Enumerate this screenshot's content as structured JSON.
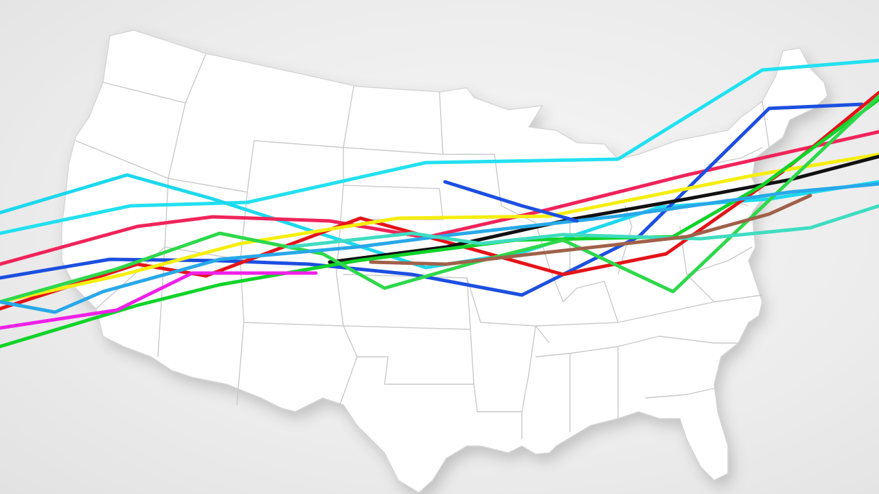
{
  "map": {
    "region": "contiguous-united-states",
    "land_color": "#ffffff",
    "border_color": "#c9c9c9",
    "background_color": "#e9e9e9"
  },
  "routes": [
    {
      "id": "route-cyan-north",
      "color": "#22e0f0"
    },
    {
      "id": "route-cyan-mid",
      "color": "#1ed8ee"
    },
    {
      "id": "route-pink-red",
      "color": "#f0245a"
    },
    {
      "id": "route-blue",
      "color": "#1c4fe0"
    },
    {
      "id": "route-red",
      "color": "#e4141a"
    },
    {
      "id": "route-yellow",
      "color": "#f5ee10"
    },
    {
      "id": "route-black",
      "color": "#111111"
    },
    {
      "id": "route-green-1",
      "color": "#12d32a"
    },
    {
      "id": "route-green-2",
      "color": "#2ed84a"
    },
    {
      "id": "route-sky-blue",
      "color": "#28a8e8"
    },
    {
      "id": "route-teal",
      "color": "#3fdcc0"
    },
    {
      "id": "route-magenta",
      "color": "#f020e8"
    },
    {
      "id": "route-brown",
      "color": "#a0614a"
    }
  ]
}
